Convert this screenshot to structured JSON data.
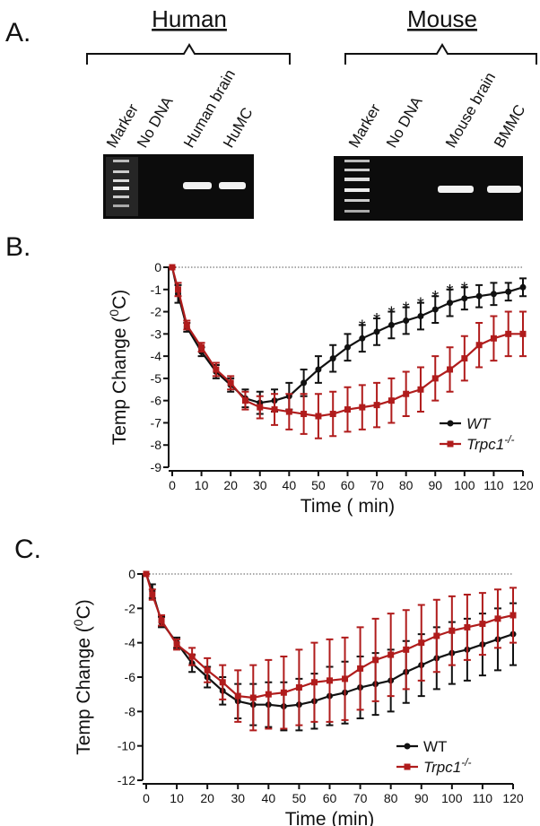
{
  "panel_a": {
    "label": "A.",
    "groups": [
      {
        "title": "Human",
        "lanes": [
          "Marker",
          "No DNA",
          "Human brain",
          "HuMC"
        ]
      },
      {
        "title": "Mouse",
        "lanes": [
          "Marker",
          "No DNA",
          "Mouse brain",
          "BMMC"
        ]
      }
    ]
  },
  "panel_b": {
    "label": "B."
  },
  "panel_c": {
    "label": "C."
  },
  "chart_data": [
    {
      "type": "line",
      "ylabel": {
        "text": "Temp Change (",
        "sup": "0",
        "after": "C)"
      },
      "xlabel": "Time ( min)",
      "x": [
        0,
        2,
        5,
        10,
        15,
        20,
        25,
        30,
        35,
        40,
        45,
        50,
        55,
        60,
        65,
        70,
        75,
        80,
        85,
        90,
        95,
        100,
        105,
        110,
        115,
        120
      ],
      "xlim": [
        0,
        120
      ],
      "xticks": [
        0,
        10,
        20,
        30,
        40,
        50,
        60,
        70,
        80,
        90,
        100,
        110,
        120
      ],
      "ylim": [
        -9,
        0
      ],
      "yticks": [
        0,
        -1,
        -2,
        -3,
        -4,
        -5,
        -6,
        -7,
        -8,
        -9
      ],
      "zero_line": true,
      "series": [
        {
          "name": "WT",
          "italic": true,
          "color": "#111111",
          "values": [
            0,
            -1.2,
            -2.7,
            -3.8,
            -4.7,
            -5.3,
            -5.9,
            -6.1,
            -6.0,
            -5.8,
            -5.2,
            -4.6,
            -4.1,
            -3.6,
            -3.2,
            -2.9,
            -2.6,
            -2.4,
            -2.2,
            -1.9,
            -1.6,
            -1.4,
            -1.3,
            -1.2,
            -1.1,
            -0.9
          ],
          "errors": [
            0,
            0.4,
            0.2,
            0.2,
            0.3,
            0.3,
            0.4,
            0.5,
            0.5,
            0.6,
            0.6,
            0.6,
            0.6,
            0.6,
            0.6,
            0.6,
            0.6,
            0.6,
            0.6,
            0.6,
            0.6,
            0.5,
            0.5,
            0.5,
            0.4,
            0.4
          ]
        },
        {
          "name": "Trpc1",
          "sup": "-/-",
          "italic": true,
          "color": "#b01c1c",
          "values": [
            0,
            -1.0,
            -2.6,
            -3.6,
            -4.6,
            -5.2,
            -6.0,
            -6.3,
            -6.4,
            -6.5,
            -6.6,
            -6.7,
            -6.6,
            -6.4,
            -6.3,
            -6.2,
            -6.0,
            -5.7,
            -5.5,
            -5.0,
            -4.6,
            -4.1,
            -3.5,
            -3.2,
            -3.0,
            -3.0
          ],
          "errors": [
            0,
            0.3,
            0.2,
            0.2,
            0.3,
            0.3,
            0.4,
            0.5,
            0.7,
            0.8,
            0.9,
            1.0,
            1.0,
            1.0,
            1.0,
            1.0,
            1.0,
            1.0,
            1.0,
            1.0,
            1.0,
            1.0,
            1.0,
            1.0,
            1.0,
            1.0
          ]
        }
      ],
      "annotations": [
        {
          "x": 65,
          "text": "*"
        },
        {
          "x": 70,
          "text": "*"
        },
        {
          "x": 75,
          "text": "*"
        },
        {
          "x": 80,
          "text": "*"
        },
        {
          "x": 85,
          "text": "*"
        },
        {
          "x": 90,
          "text": "*"
        },
        {
          "x": 95,
          "text": "*"
        },
        {
          "x": 100,
          "text": "*"
        }
      ]
    },
    {
      "type": "line",
      "ylabel": {
        "text": "Temp Change (",
        "sup": "0",
        "after": "C)"
      },
      "xlabel": "Time (min)",
      "x": [
        0,
        2,
        5,
        10,
        15,
        20,
        25,
        30,
        35,
        40,
        45,
        50,
        55,
        60,
        65,
        70,
        75,
        80,
        85,
        90,
        95,
        100,
        105,
        110,
        115,
        120
      ],
      "xlim": [
        0,
        120
      ],
      "xticks": [
        0,
        10,
        20,
        30,
        40,
        50,
        60,
        70,
        80,
        90,
        100,
        110,
        120
      ],
      "ylim": [
        -12,
        0
      ],
      "yticks": [
        0,
        -2,
        -4,
        -6,
        -8,
        -10,
        -12
      ],
      "zero_line": true,
      "series": [
        {
          "name": "WT",
          "italic": false,
          "color": "#111111",
          "values": [
            0,
            -1.0,
            -2.8,
            -4.0,
            -5.2,
            -6.0,
            -6.8,
            -7.4,
            -7.6,
            -7.6,
            -7.7,
            -7.6,
            -7.4,
            -7.1,
            -6.9,
            -6.6,
            -6.4,
            -6.2,
            -5.7,
            -5.3,
            -4.9,
            -4.6,
            -4.4,
            -4.1,
            -3.8,
            -3.5
          ],
          "errors": [
            0,
            0.4,
            0.3,
            0.3,
            0.5,
            0.6,
            0.8,
            1.0,
            1.2,
            1.3,
            1.4,
            1.5,
            1.6,
            1.7,
            1.8,
            1.8,
            1.8,
            1.8,
            1.8,
            1.8,
            1.8,
            1.8,
            1.8,
            1.8,
            1.8,
            1.8
          ]
        },
        {
          "name": "Trpc1",
          "sup": "-/-",
          "italic": true,
          "color": "#b01c1c",
          "values": [
            0,
            -1.2,
            -2.7,
            -4.1,
            -4.8,
            -5.6,
            -6.3,
            -7.1,
            -7.2,
            -7.0,
            -6.9,
            -6.6,
            -6.3,
            -6.2,
            -6.1,
            -5.5,
            -5.0,
            -4.7,
            -4.4,
            -4.0,
            -3.6,
            -3.3,
            -3.1,
            -2.9,
            -2.6,
            -2.4
          ],
          "errors": [
            0,
            0.3,
            0.3,
            0.3,
            0.5,
            0.7,
            1.0,
            1.5,
            1.9,
            2.0,
            2.1,
            2.2,
            2.3,
            2.4,
            2.4,
            2.4,
            2.4,
            2.4,
            2.3,
            2.2,
            2.1,
            2.0,
            1.9,
            1.8,
            1.7,
            1.6
          ]
        }
      ],
      "annotations": []
    }
  ]
}
